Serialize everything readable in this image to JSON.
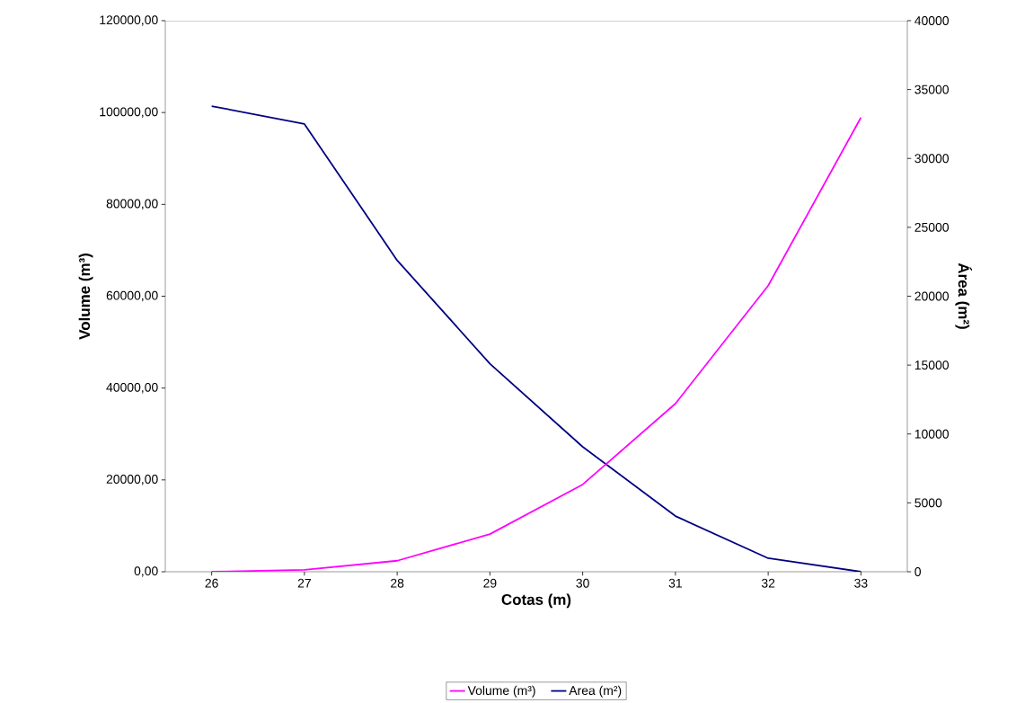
{
  "chart_data": {
    "type": "line",
    "xlabel": "Cotas (m)",
    "ylabel": "Volume (m³)",
    "y2label": "Área (m²)",
    "categories": [
      "26",
      "27",
      "28",
      "29",
      "30",
      "31",
      "32",
      "33"
    ],
    "series": [
      {
        "name": "Volume  (m³)",
        "color": "#ff00ff",
        "axis": "y",
        "values": [
          0,
          400,
          2400,
          8200,
          19000,
          36600,
          62300,
          98900
        ]
      },
      {
        "name": "Area  (m²)",
        "color": "#000080",
        "axis": "y2",
        "values": [
          33800,
          32500,
          22600,
          15100,
          9070,
          4040,
          980,
          0
        ]
      }
    ],
    "ylim": [
      0,
      120000
    ],
    "yticks": [
      {
        "value": 0,
        "label": "0,00"
      },
      {
        "value": 20000,
        "label": "20000,00"
      },
      {
        "value": 40000,
        "label": "40000,00"
      },
      {
        "value": 60000,
        "label": "60000,00"
      },
      {
        "value": 80000,
        "label": "80000,00"
      },
      {
        "value": 100000,
        "label": "100000,00"
      },
      {
        "value": 120000,
        "label": "120000,00"
      }
    ],
    "y2lim": [
      0,
      40000
    ],
    "y2ticks": [
      0,
      5000,
      10000,
      15000,
      20000,
      25000,
      30000,
      35000,
      40000
    ],
    "grid": false,
    "legend": "bottom",
    "marker": "none",
    "line_style": "solid"
  }
}
